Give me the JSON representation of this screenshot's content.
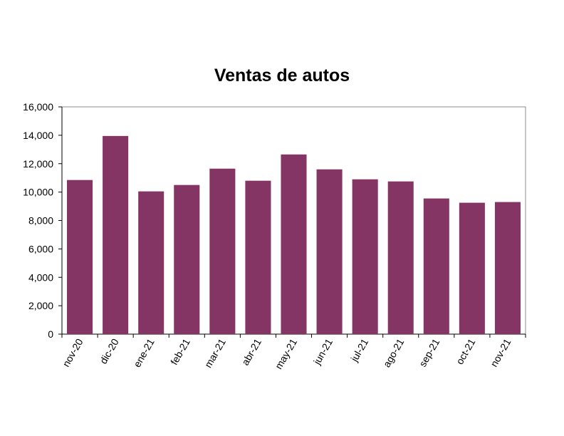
{
  "chart_data": {
    "type": "bar",
    "title": "Ventas de autos",
    "xlabel": "",
    "ylabel": "",
    "categories": [
      "nov-20",
      "dic-20",
      "ene-21",
      "feb-21",
      "mar-21",
      "abr-21",
      "may-21",
      "jun-21",
      "jul-21",
      "ago-21",
      "sep-21",
      "oct-21",
      "nov-21"
    ],
    "values": [
      10850,
      13950,
      10050,
      10500,
      11650,
      10800,
      12650,
      11600,
      10900,
      10750,
      9550,
      9250,
      9300
    ],
    "ylim": [
      0,
      16000
    ],
    "yticks": [
      "0",
      "2,000",
      "4,000",
      "6,000",
      "8,000",
      "10,000",
      "12,000",
      "14,000",
      "16,000"
    ],
    "ytick_values": [
      0,
      2000,
      4000,
      6000,
      8000,
      10000,
      12000,
      14000,
      16000
    ],
    "grid": false,
    "legend": "none",
    "bar_color": "#853564"
  }
}
